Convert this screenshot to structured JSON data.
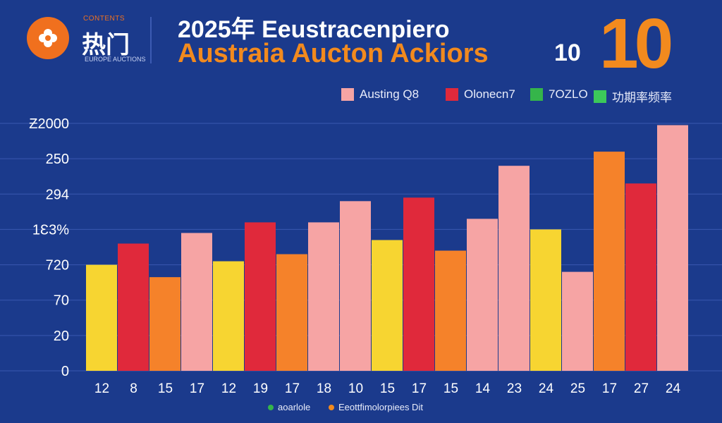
{
  "brand": {
    "tag": "CONTENTS",
    "name": "热门",
    "sub": "EUROPE AUCTIONS",
    "color": "#f0701e"
  },
  "header": {
    "title_line1": "2025年 Eeustracenpiero",
    "title_line2": "Austraia Aucton Ackiors",
    "title_line2_num": "10",
    "big_number": "10"
  },
  "legend": [
    {
      "label": "Austing Q8",
      "color": "#f6a4a4"
    },
    {
      "label": "Olonecn7",
      "color": "#e0293b"
    },
    {
      "label": "7OZLO",
      "color": "#35b54a"
    },
    {
      "label": "功期率频率",
      "color": "#3cc85a"
    }
  ],
  "bottom_legend": [
    {
      "label": "aoarlole",
      "color": "#35b54a"
    },
    {
      "label": "Eeottfimolorpiees Dit",
      "color": "#f28a1e"
    }
  ],
  "chart_data": {
    "type": "bar",
    "title": "2025年 Eeustracenpiero Austraia Aucton Ackiors 10",
    "xlabel": "",
    "ylabel": "",
    "y_tick_labels": [
      "0",
      "20",
      "70",
      "720",
      "1Ɛ3%",
      "294",
      "250",
      "Ƶ2000"
    ],
    "ylim": [
      0,
      7
    ],
    "grid": true,
    "legend_position": "top-right",
    "categories": [
      "12",
      "8",
      "15",
      "17",
      "12",
      "19",
      "17",
      "18",
      "10",
      "15",
      "17",
      "15",
      "14",
      "23",
      "24",
      "25",
      "17",
      "27",
      "24"
    ],
    "values": [
      3.0,
      3.6,
      2.65,
      3.9,
      3.1,
      4.2,
      3.3,
      4.2,
      4.8,
      3.7,
      4.9,
      3.4,
      4.3,
      5.8,
      4.0,
      2.8,
      6.2,
      5.3,
      6.95
    ],
    "colors": [
      "#f7d531",
      "#e0293b",
      "#f5822a",
      "#f6a4a4",
      "#f7d531",
      "#e0293b",
      "#f5822a",
      "#f6a4a4",
      "#f6a4a4",
      "#f7d531",
      "#e0293b",
      "#f5822a",
      "#f6a4a4",
      "#f6a4a4",
      "#f7d531",
      "#f6a4a4",
      "#f5822a",
      "#e0293b",
      "#f6a4a4"
    ]
  }
}
